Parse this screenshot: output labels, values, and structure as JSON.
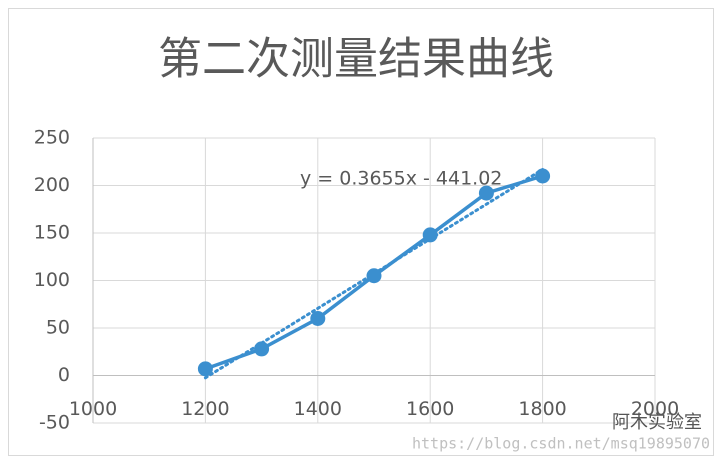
{
  "chart_data": {
    "type": "scatter-line",
    "title": "第二次测量结果曲线",
    "x": [
      1200,
      1300,
      1400,
      1500,
      1600,
      1700,
      1800
    ],
    "values": [
      7,
      28,
      60,
      105,
      148,
      192,
      210
    ],
    "color": "#3b8fcf",
    "xlim": [
      1000,
      2000
    ],
    "xticks": [
      1000,
      1200,
      1400,
      1600,
      1800,
      2000
    ],
    "ylim": [
      -50,
      250
    ],
    "yticks": [
      -50,
      0,
      50,
      100,
      150,
      200,
      250
    ],
    "grid": true,
    "trendline": {
      "equation": "y = 0.3655x - 441.02",
      "slope": 0.3655,
      "intercept": -441.02,
      "style": "dotted"
    },
    "watermark": [
      "阿木实验室",
      "https://blog.csdn.net/msq19895070"
    ]
  }
}
